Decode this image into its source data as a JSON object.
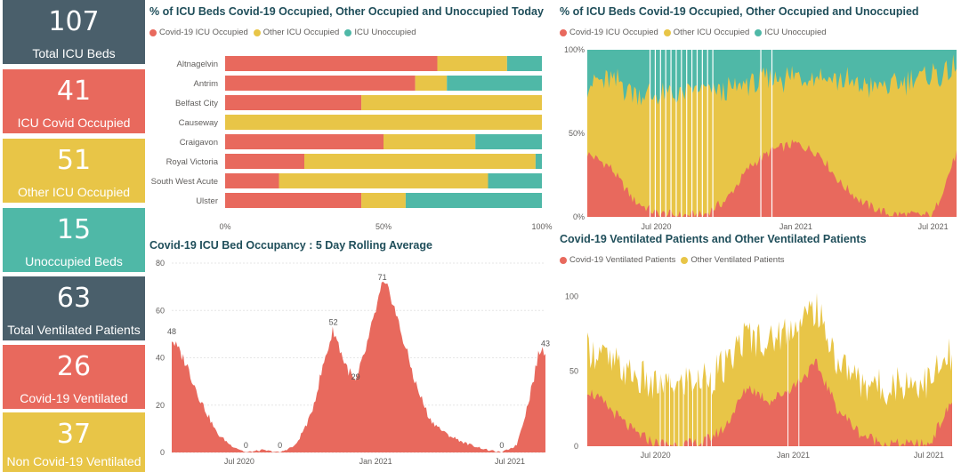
{
  "colors": {
    "covid": "#e8695d",
    "other": "#e8c547",
    "unocc": "#4fb8a7",
    "dark": "#4a5f6b",
    "text": "#605e5c"
  },
  "kpis": [
    {
      "value": "107",
      "label": "Total ICU Beds",
      "color": "#4a5f6b"
    },
    {
      "value": "41",
      "label": "ICU Covid Occupied",
      "color": "#e8695d"
    },
    {
      "value": "51",
      "label": "Other ICU Occupied",
      "color": "#e8c547"
    },
    {
      "value": "15",
      "label": "Unoccupied Beds",
      "color": "#4fb8a7"
    },
    {
      "value": "63",
      "label": "Total Ventilated Patients",
      "color": "#4a5f6b"
    },
    {
      "value": "26",
      "label": "Covid-19 Ventilated",
      "color": "#e8695d"
    },
    {
      "value": "37",
      "label": "Non Covid-19 Ventilated",
      "color": "#e8c547"
    }
  ],
  "chart_data": [
    {
      "type": "bar",
      "orientation": "horizontal-stacked-100",
      "title": "% of ICU Beds Covid-19 Occupied, Other Occupied and Unoccupied Today",
      "categories": [
        "Altnagelvin",
        "Antrim",
        "Belfast City",
        "Causeway",
        "Craigavon",
        "Royal Victoria",
        "South West Acute",
        "Ulster"
      ],
      "series": [
        {
          "name": "Covid-19 ICU Occupied",
          "values": [
            67,
            60,
            43,
            0,
            50,
            25,
            17,
            43
          ]
        },
        {
          "name": "Other ICU Occupied",
          "values": [
            22,
            10,
            57,
            100,
            29,
            73,
            66,
            14
          ]
        },
        {
          "name": "ICU Unoccupied",
          "values": [
            11,
            30,
            0,
            0,
            21,
            2,
            17,
            43
          ]
        }
      ],
      "x_ticks": [
        "0%",
        "50%",
        "100%"
      ],
      "xlim": [
        0,
        100
      ]
    },
    {
      "type": "area",
      "title": "% of ICU Beds Covid-19 Occupied, Other Occupied and Unoccupied",
      "series": [
        {
          "name": "Covid-19 ICU Occupied"
        },
        {
          "name": "Other ICU Occupied"
        },
        {
          "name": "ICU Unoccupied"
        }
      ],
      "x": [
        "2020-04-01",
        "2020-05-01",
        "2020-06-01",
        "2020-07-01",
        "2020-08-01",
        "2020-09-01",
        "2020-10-01",
        "2020-11-01",
        "2020-12-01",
        "2021-01-01",
        "2021-02-01",
        "2021-03-01",
        "2021-04-01",
        "2021-05-01",
        "2021-06-01",
        "2021-07-01",
        "2021-08-01"
      ],
      "covid_pct": [
        38,
        30,
        10,
        2,
        1,
        1,
        10,
        30,
        40,
        44,
        38,
        20,
        8,
        2,
        1,
        1,
        38
      ],
      "other_pct": [
        42,
        52,
        65,
        70,
        72,
        75,
        65,
        50,
        42,
        40,
        48,
        62,
        70,
        76,
        80,
        84,
        50
      ],
      "x_ticks": [
        "Jul 2020",
        "Jan 2021",
        "Jul 2021"
      ],
      "y_ticks": [
        "0%",
        "50%",
        "100%"
      ],
      "ylim": [
        0,
        100
      ]
    },
    {
      "type": "area",
      "title": "Covid-19 ICU Bed Occupancy : 5 Day Rolling Average",
      "x": [
        "2020-04-01",
        "2020-04-20",
        "2020-05-10",
        "2020-06-01",
        "2020-06-20",
        "2020-07-10",
        "2020-08-01",
        "2020-08-25",
        "2020-09-15",
        "2020-10-05",
        "2020-10-25",
        "2020-11-05",
        "2020-11-20",
        "2020-12-05",
        "2020-12-20",
        "2021-01-10",
        "2021-01-20",
        "2021-02-05",
        "2021-02-25",
        "2021-03-15",
        "2021-04-05",
        "2021-05-01",
        "2021-06-01",
        "2021-06-20",
        "2021-07-10",
        "2021-07-25",
        "2021-08-10",
        "2021-08-18"
      ],
      "values": [
        48,
        38,
        22,
        8,
        3,
        0,
        1,
        0,
        3,
        15,
        40,
        52,
        38,
        29,
        45,
        71,
        68,
        50,
        28,
        14,
        8,
        4,
        1,
        0,
        3,
        20,
        43,
        43
      ],
      "annotations": [
        {
          "x": "2020-04-01",
          "label": "48"
        },
        {
          "x": "2020-07-10",
          "label": "0"
        },
        {
          "x": "2020-08-25",
          "label": "0"
        },
        {
          "x": "2020-11-05",
          "label": "52"
        },
        {
          "x": "2020-12-05",
          "label": "29"
        },
        {
          "x": "2021-01-10",
          "label": "71"
        },
        {
          "x": "2021-06-20",
          "label": "0"
        },
        {
          "x": "2021-08-18",
          "label": "43"
        }
      ],
      "x_ticks": [
        "Jul 2020",
        "Jan 2021",
        "Jul 2021"
      ],
      "y_ticks": [
        "0",
        "20",
        "40",
        "60",
        "80"
      ],
      "ylim": [
        0,
        80
      ]
    },
    {
      "type": "area",
      "title": "Covid-19 Ventilated Patients and Other Ventilated Patients",
      "series": [
        {
          "name": "Covid-19 Ventilated Patients"
        },
        {
          "name": "Other Ventilated Patients"
        }
      ],
      "x": [
        "2020-04-01",
        "2020-05-01",
        "2020-06-01",
        "2020-07-01",
        "2020-08-01",
        "2020-09-01",
        "2020-10-01",
        "2020-11-01",
        "2020-12-01",
        "2021-01-01",
        "2021-02-01",
        "2021-03-01",
        "2021-04-01",
        "2021-05-01",
        "2021-06-01",
        "2021-07-01",
        "2021-08-01"
      ],
      "covid_values": [
        38,
        25,
        10,
        2,
        1,
        2,
        12,
        40,
        30,
        40,
        55,
        25,
        8,
        2,
        1,
        1,
        30
      ],
      "other_values": [
        30,
        30,
        35,
        38,
        40,
        42,
        40,
        35,
        40,
        42,
        35,
        32,
        35,
        38,
        40,
        42,
        30
      ],
      "x_ticks": [
        "Jul 2020",
        "Jan 2021",
        "Jul 2021"
      ],
      "y_ticks": [
        "0",
        "50",
        "100"
      ],
      "ylim": [
        0,
        115
      ]
    }
  ]
}
